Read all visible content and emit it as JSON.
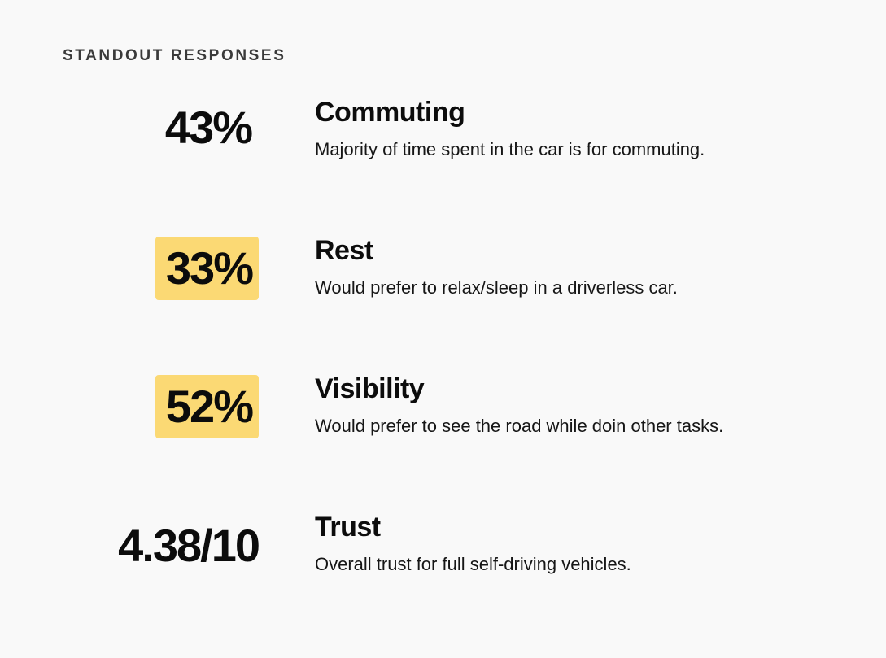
{
  "section_title": "STANDOUT RESPONSES",
  "colors": {
    "background": "#f9f9f9",
    "highlight": "#fbd974",
    "text": "#0c0c0c",
    "label": "#3a3a3a"
  },
  "items": [
    {
      "stat": "43%",
      "heading": "Commuting",
      "description": "Majority of time spent in the car is for commuting.",
      "highlighted": false
    },
    {
      "stat": "33%",
      "heading": "Rest",
      "description": "Would prefer to relax/sleep in a driverless car.",
      "highlighted": true
    },
    {
      "stat": "52%",
      "heading": "Visibility",
      "description": "Would prefer to see the road while doin other tasks.",
      "highlighted": true
    },
    {
      "stat": "4.38/10",
      "heading": "Trust",
      "description": "Overall trust for full self-driving vehicles.",
      "highlighted": false
    }
  ]
}
